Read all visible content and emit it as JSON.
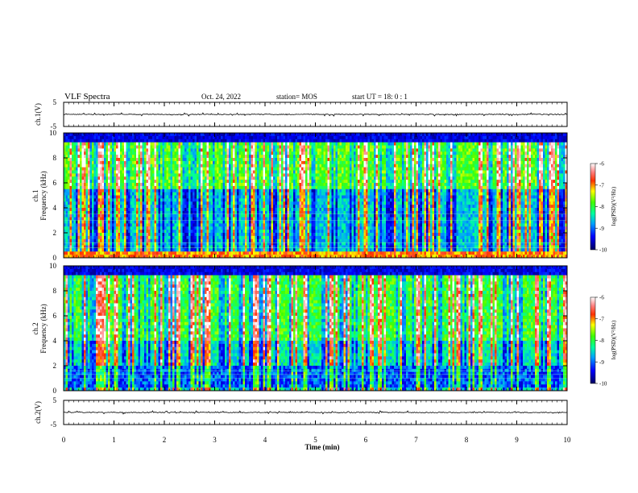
{
  "header": {
    "title": "VLF Spectra",
    "date": "Oct. 24, 2022",
    "station": "station= MOS",
    "start": "start  UT =   18: 0  : 1"
  },
  "chart_data": [
    {
      "type": "line",
      "title": "",
      "ylabel": "ch.1(V)",
      "ylim": [
        -5,
        5
      ],
      "yticks": [
        "5",
        "-5"
      ],
      "xlim": [
        0,
        10
      ],
      "description_value": "flat trace near 0 V"
    },
    {
      "type": "heatmap",
      "ylabel": "ch.1\nFrequency (kHz)",
      "ylim": [
        0,
        10
      ],
      "yticks": [
        "0",
        "2",
        "4",
        "6",
        "8",
        "10"
      ],
      "xlim": [
        0,
        10
      ],
      "colorbar": {
        "label": "log(PSD)(V²/Hz)",
        "range": [
          -10,
          -6
        ],
        "ticks": [
          "-6",
          "-7",
          "-8",
          "-9",
          "-10"
        ]
      }
    },
    {
      "type": "heatmap",
      "ylabel": "ch.2\nFrequency (kHz)",
      "ylim": [
        0,
        10
      ],
      "yticks": [
        "0",
        "2",
        "4",
        "6",
        "8",
        "10"
      ],
      "xlim": [
        0,
        10
      ],
      "colorbar": {
        "label": "log(PSD)(V²/Hz)",
        "range": [
          -10,
          -6
        ],
        "ticks": [
          "-6",
          "-7",
          "-8",
          "-9",
          "-10"
        ]
      }
    },
    {
      "type": "line",
      "ylabel": "ch.2(V)",
      "ylim": [
        -5,
        5
      ],
      "yticks": [
        "5",
        "-5"
      ],
      "xlim": [
        0,
        10
      ],
      "xlabel": "Time  (min)",
      "xticks": [
        "0",
        "1",
        "2",
        "3",
        "4",
        "5",
        "6",
        "7",
        "8",
        "9",
        "10"
      ]
    }
  ],
  "labels": {
    "ch1_volt": "ch.1(V)",
    "ch1_freq_a": "ch.1",
    "ch1_freq_b": "Frequency (kHz)",
    "ch2_freq_a": "ch.2",
    "ch2_freq_b": "Frequency (kHz)",
    "ch2_volt": "ch.2(V)",
    "xlabel": "Time  (min)",
    "cb_label": "log(PSD)(V²/Hz)"
  },
  "colors": {
    "background": "#ffffff",
    "trace": "#000000",
    "colormap": [
      "#000000",
      "#00008b",
      "#0000ff",
      "#00ffff",
      "#00ff00",
      "#ffff00",
      "#ff0000",
      "#ffffff"
    ]
  }
}
